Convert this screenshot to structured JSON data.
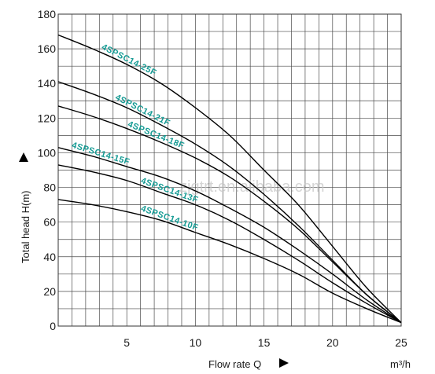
{
  "chart_data": {
    "type": "line",
    "xlabel": "Flow rate Q",
    "x_unit": "m³/h",
    "ylabel": "Total head H(m)",
    "xlim": [
      0,
      25
    ],
    "ylim": [
      0,
      180
    ],
    "x_ticks": [
      "5",
      "10",
      "15",
      "20",
      "25"
    ],
    "y_ticks": [
      "0",
      "20",
      "40",
      "60",
      "80",
      "100",
      "120",
      "140",
      "160",
      "180"
    ],
    "grid": true,
    "watermark": "zjgtrt.en.alibaba.com",
    "series": [
      {
        "name": "4SPSC14-25F",
        "x": [
          0,
          2.5,
          5,
          7.5,
          10,
          12.5,
          15,
          17.5,
          20,
          22.5,
          25
        ],
        "y": [
          168,
          160,
          151,
          140,
          126,
          110,
          90,
          70,
          46,
          22,
          2
        ]
      },
      {
        "name": "4SPSC14-21F",
        "x": [
          0,
          2.5,
          5,
          7.5,
          10,
          12.5,
          15,
          17.5,
          20,
          22.5,
          25
        ],
        "y": [
          141,
          134,
          126,
          116,
          105,
          92,
          76,
          58,
          38,
          18,
          2
        ]
      },
      {
        "name": "4SPSC14-18F",
        "x": [
          0,
          2.5,
          5,
          7.5,
          10,
          12.5,
          15,
          17.5,
          20,
          22.5,
          25
        ],
        "y": [
          127,
          121,
          114,
          106,
          97,
          86,
          72,
          56,
          37,
          18,
          2
        ]
      },
      {
        "name": "4SPSC14-15F",
        "x": [
          0,
          2.5,
          5,
          7.5,
          10,
          12.5,
          15,
          17.5,
          20,
          22.5,
          25
        ],
        "y": [
          103,
          98,
          92,
          86,
          78,
          68,
          57,
          44,
          30,
          15,
          2
        ]
      },
      {
        "name": "4SPSC14-13F",
        "x": [
          0,
          2.5,
          5,
          7.5,
          10,
          12.5,
          15,
          17.5,
          20,
          22.5,
          25
        ],
        "y": [
          93,
          89,
          84,
          77,
          70,
          61,
          50,
          38,
          25,
          13,
          2
        ]
      },
      {
        "name": "4SPSC14-10F",
        "x": [
          0,
          2.5,
          5,
          7.5,
          10,
          12.5,
          15,
          17.5,
          20,
          22.5,
          25
        ],
        "y": [
          73,
          70,
          66,
          61,
          54,
          47,
          39,
          30,
          19,
          10,
          2
        ]
      }
    ],
    "label_at_x": [
      5,
      6,
      7,
      3,
      8,
      8
    ],
    "colors": {
      "curve": "#000000",
      "label": "#169b94",
      "grid": "#4a4a4a"
    }
  }
}
